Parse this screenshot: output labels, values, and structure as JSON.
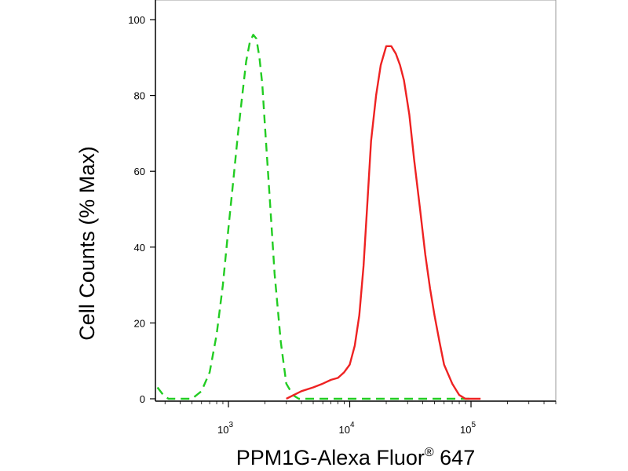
{
  "chart_data": {
    "type": "line",
    "title": "",
    "xlabel": "PPM1G-Alexa Fluor",
    "xlabel_sup": "®",
    "xlabel_suffix": " 647",
    "ylabel": "Cell Counts (% Max)",
    "x_scale": "log",
    "xlim": [
      250,
      500000
    ],
    "ylim": [
      0,
      100
    ],
    "y_ticks": [
      0,
      20,
      40,
      60,
      80,
      100
    ],
    "x_ticks": [
      {
        "value": 1000,
        "base": "10",
        "exp": "3"
      },
      {
        "value": 10000,
        "base": "10",
        "exp": "4"
      },
      {
        "value": 100000,
        "base": "10",
        "exp": "5"
      }
    ],
    "legend": "none",
    "grid": false,
    "series": [
      {
        "color": "#22cc22",
        "style": "dashed",
        "x": [
          260,
          290,
          320,
          400,
          500,
          600,
          700,
          800,
          900,
          1000,
          1100,
          1200,
          1300,
          1400,
          1500,
          1600,
          1700,
          1800,
          1900,
          2000,
          2200,
          2400,
          2700,
          3000,
          3400,
          3800,
          4500,
          6000,
          10000,
          50000,
          100000
        ],
        "y": [
          3,
          1,
          0,
          0,
          0,
          2,
          7,
          17,
          30,
          45,
          58,
          70,
          80,
          89,
          94,
          96,
          95,
          90,
          83,
          72,
          52,
          33,
          15,
          4,
          1,
          0,
          0,
          0,
          0,
          0,
          0
        ]
      },
      {
        "color": "#ee2222",
        "style": "solid",
        "x": [
          3000,
          4000,
          5000,
          6000,
          7000,
          8000,
          9000,
          10000,
          11000,
          12000,
          13000,
          14000,
          15000,
          16500,
          18000,
          20000,
          22000,
          24000,
          26000,
          28000,
          31000,
          34000,
          38000,
          42000,
          46000,
          50000,
          55000,
          60000,
          70000,
          80000,
          90000,
          100000,
          120000
        ],
        "y": [
          0,
          2,
          3,
          4,
          5,
          5.5,
          7,
          9,
          14,
          22,
          35,
          52,
          68,
          80,
          88,
          93,
          93,
          91,
          88,
          84,
          75,
          63,
          50,
          38,
          29,
          22,
          15,
          9,
          4,
          1,
          0,
          0,
          0
        ]
      }
    ]
  }
}
